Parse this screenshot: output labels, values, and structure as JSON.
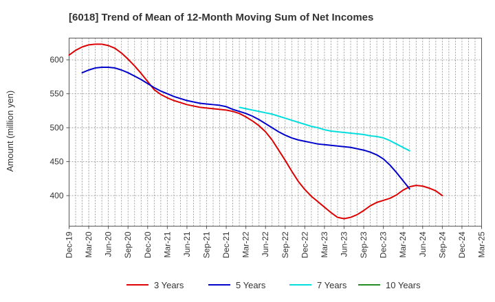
{
  "chart_data": {
    "type": "line",
    "title": "[6018]  Trend of Mean of 12-Month Moving Sum of Net Incomes",
    "xlabel": "",
    "ylabel": "Amount (million yen)",
    "ylim": [
      355,
      632
    ],
    "yticks": [
      400,
      450,
      500,
      550,
      600
    ],
    "xticks": [
      "Dec-19",
      "Mar-20",
      "Jun-20",
      "Sep-20",
      "Dec-20",
      "Mar-21",
      "Jun-21",
      "Sep-21",
      "Dec-21",
      "Mar-22",
      "Jun-22",
      "Sep-22",
      "Dec-22",
      "Mar-23",
      "Jun-23",
      "Sep-23",
      "Dec-23",
      "Mar-24",
      "Jun-24",
      "Sep-24",
      "Dec-24",
      "Mar-25"
    ],
    "grid": true,
    "legend_position": "bottom",
    "series": [
      {
        "name": "3 Years",
        "color": "#dd0000",
        "start_index": 0,
        "values": [
          607,
          614,
          619,
          622,
          623,
          623,
          621,
          617,
          610,
          601,
          591,
          580,
          568,
          556,
          549,
          544,
          540,
          537,
          534,
          532,
          530,
          529,
          528,
          527,
          526,
          524,
          521,
          516,
          510,
          503,
          494,
          482,
          467,
          452,
          436,
          421,
          409,
          399,
          391,
          383,
          375,
          368,
          366,
          368,
          372,
          378,
          385,
          390,
          393,
          396,
          401,
          408,
          413,
          415,
          414,
          411,
          407,
          400
        ]
      },
      {
        "name": "5 Years",
        "color": "#0000cc",
        "start_index": 2,
        "values": [
          581,
          585,
          588,
          589,
          589,
          588,
          585,
          581,
          576,
          571,
          565,
          559,
          554,
          550,
          546,
          543,
          540,
          538,
          536,
          535,
          534,
          533,
          531,
          527,
          524,
          521,
          517,
          512,
          506,
          500,
          494,
          489,
          485,
          482,
          480,
          478,
          476,
          475,
          474,
          473,
          472,
          471,
          469,
          467,
          464,
          460,
          454,
          445,
          434,
          422,
          410
        ]
      },
      {
        "name": "7 Years",
        "color": "#00dddd",
        "start_index": 26,
        "values": [
          530,
          528,
          526,
          524,
          522,
          520,
          517,
          514,
          511,
          508,
          505,
          502,
          500,
          497,
          495,
          494,
          493,
          492,
          491,
          490,
          488,
          487,
          485,
          481,
          476,
          471,
          466
        ]
      },
      {
        "name": "10 Years",
        "color": "#228b22",
        "start_index": 0,
        "values": []
      }
    ]
  }
}
